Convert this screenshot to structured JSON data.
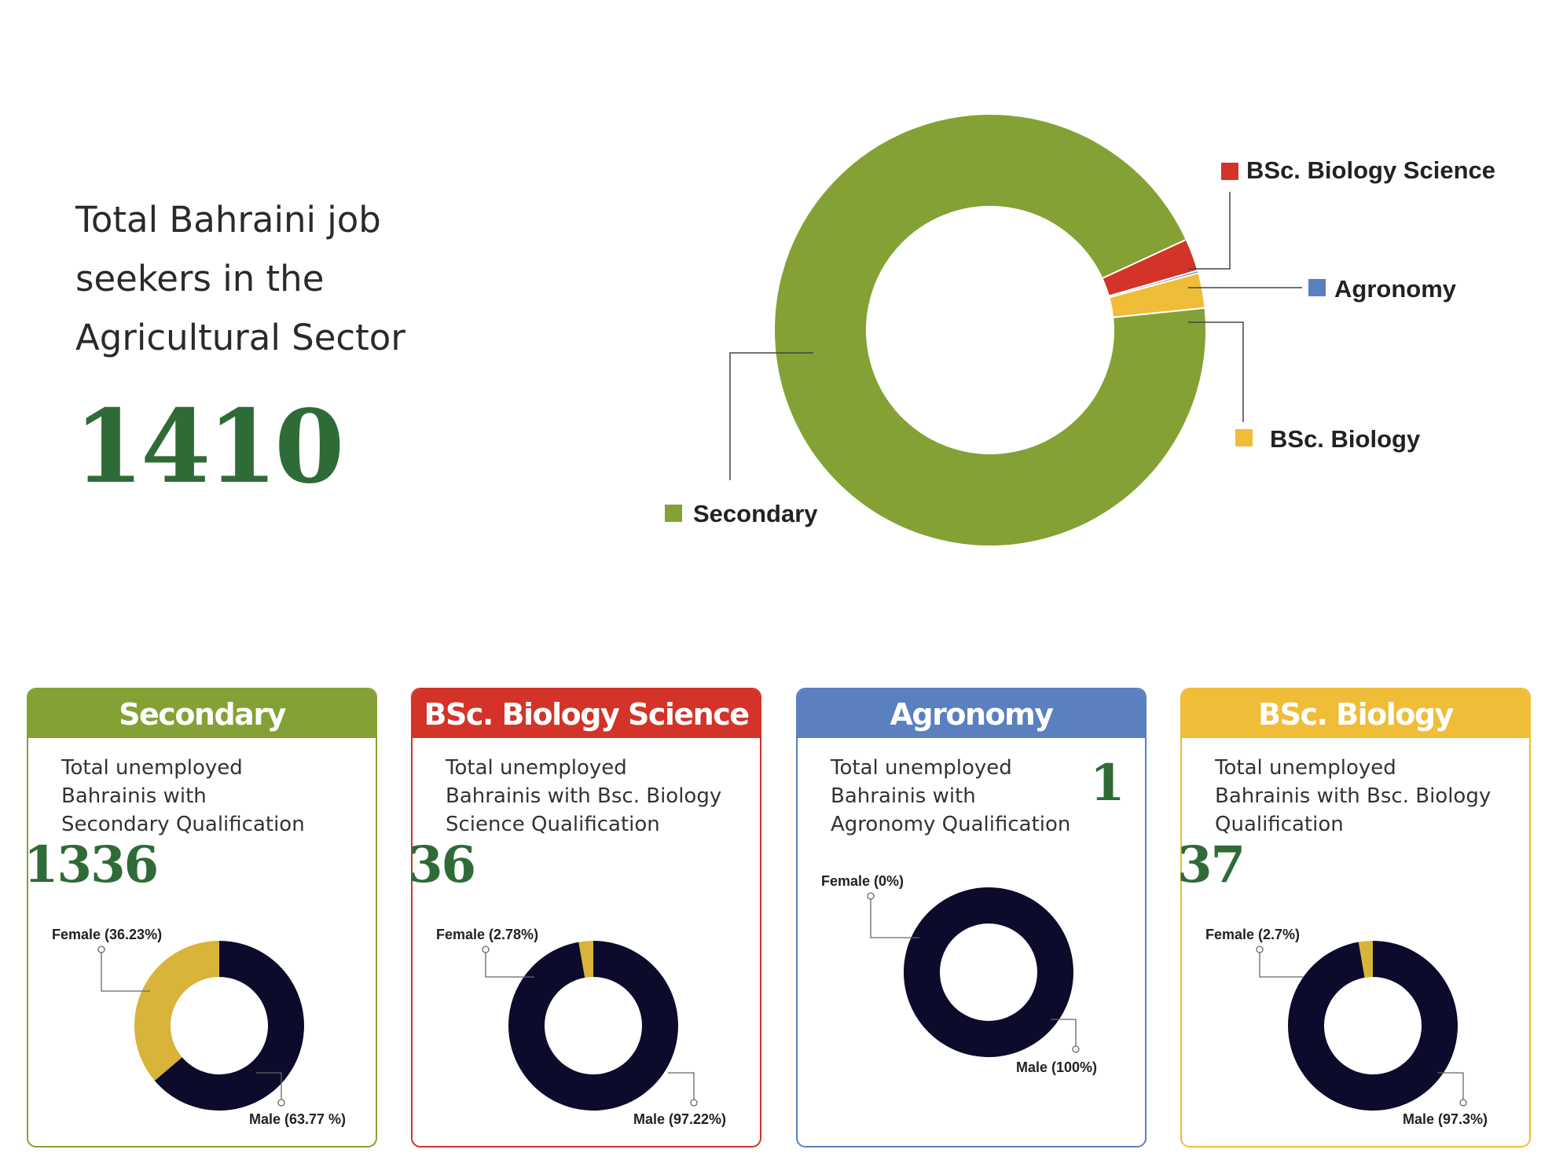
{
  "headline": "Total Bahraini job seekers in the Agricultural Sector",
  "total": "1410",
  "colors": {
    "green": "#84a135",
    "red": "#d33329",
    "blue": "#5a80bf",
    "yellow": "#efbd37",
    "navy": "#0c0b2c",
    "female": "#d8b43a",
    "count": "#2f6b37"
  },
  "chart_data": [
    {
      "type": "pie",
      "categories": [
        "Secondary",
        "BSc. Biology Science",
        "Agronomy",
        "BSc. Biology"
      ],
      "values": [
        1336,
        36,
        1,
        37
      ],
      "colors": [
        "#84a135",
        "#d33329",
        "#5a80bf",
        "#efbd37"
      ]
    },
    {
      "type": "pie",
      "categories": [
        "Female (36.23%)",
        "Male (63.77 %)"
      ],
      "values": [
        36.23,
        63.77
      ]
    },
    {
      "type": "pie",
      "categories": [
        "Female (2.78%)",
        "Male (97.22%)"
      ],
      "values": [
        2.78,
        97.22
      ]
    },
    {
      "type": "pie",
      "categories": [
        "Female (0%)",
        "Male (100%)"
      ],
      "values": [
        0,
        100
      ]
    },
    {
      "type": "pie",
      "categories": [
        "Female (2.7%)",
        "Male (97.3%)"
      ],
      "values": [
        2.7,
        97.3
      ]
    }
  ],
  "cards": [
    {
      "title": "Secondary",
      "desc": "Total unemployed Bahrainis with Secondary Qualification",
      "count": "1336",
      "female": "Female (36.23%)",
      "male": "Male (63.77 %)"
    },
    {
      "title": "BSc. Biology Science",
      "desc": "Total unemployed Bahrainis with Bsc. Biology Science Qualification",
      "count": "36",
      "female": "Female (2.78%)",
      "male": "Male (97.22%)"
    },
    {
      "title": "Agronomy",
      "desc": "Total unemployed Bahrainis with Agronomy Qualification",
      "count": "1",
      "female": "Female (0%)",
      "male": "Male (100%)"
    },
    {
      "title": "BSc. Biology",
      "desc": "Total unemployed Bahrainis with Bsc. Biology Qualification",
      "count": "37",
      "female": "Female (2.7%)",
      "male": "Male (97.3%)"
    }
  ]
}
